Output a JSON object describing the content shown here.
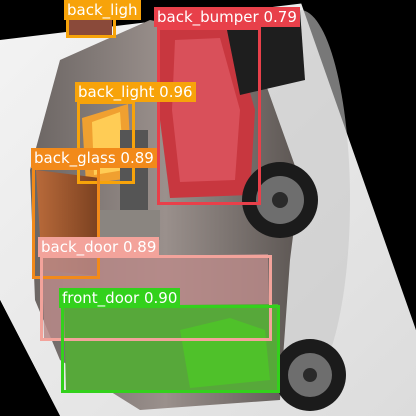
{
  "detections": [
    {
      "label": "back_light",
      "score": "0.96",
      "text": "back_light 0.96",
      "color": "#f7a30a"
    },
    {
      "label": "back_light",
      "score": "",
      "text": "back_ligh",
      "color": "#f7a30a"
    },
    {
      "label": "back_bumper",
      "score": "0.79",
      "text": "back_bumper 0.79",
      "color": "#e8404a"
    },
    {
      "label": "back_glass",
      "score": "0.89",
      "text": "back_glass 0.89",
      "color": "#f28a1a"
    },
    {
      "label": "back_door",
      "score": "0.89",
      "text": "back_door 0.89",
      "color": "#f3a39b"
    },
    {
      "label": "front_door",
      "score": "0.90",
      "text": "front_door 0.90",
      "color": "#33d11c"
    }
  ]
}
